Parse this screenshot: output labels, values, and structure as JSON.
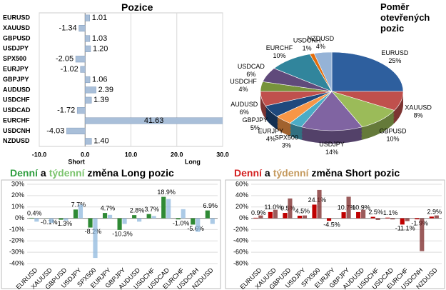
{
  "chart_data": [
    {
      "type": "bar",
      "orientation": "horizontal",
      "title": "Pozice",
      "categories": [
        "EURUSD",
        "XAUUSD",
        "GBPUSD",
        "USDJPY",
        "SPX500",
        "EURJPY",
        "GBPJPY",
        "AUDUSD",
        "USDCHF",
        "USDCAD",
        "EURCHF",
        "USDCNH",
        "NZDUSD"
      ],
      "values": [
        1.01,
        -1.34,
        1.03,
        1.2,
        -2.05,
        -1.02,
        1.06,
        2.39,
        1.39,
        -1.72,
        41.63,
        -4.03,
        1.4
      ],
      "value_labels": [
        "1.01",
        "-1.34",
        "1.03",
        "1.20",
        "-2.05",
        "-1.02",
        "1.06",
        "2.39",
        "1.39",
        "-1.72",
        "41.63",
        "-4.03",
        "1.40"
      ],
      "color": "#a9bfd9",
      "xlim": [
        -10,
        30
      ],
      "xticks": [
        {
          "value": -10,
          "label": "-10.0"
        },
        {
          "value": 0,
          "label": "0.0"
        },
        {
          "value": 10,
          "label": "10.0"
        },
        {
          "value": 20,
          "label": "20.0"
        },
        {
          "value": 30,
          "label": "30.0"
        }
      ],
      "annotations": [
        "Short",
        "Long"
      ],
      "grid": true
    },
    {
      "type": "pie",
      "title": "Poměr otevřených pozic",
      "categories": [
        "EURUSD",
        "XAUUSD",
        "GBPUSD",
        "USDJPY",
        "SPX500",
        "EURJPY",
        "GBPJPY",
        "AUDUSD",
        "USDCHF",
        "USDCAD",
        "EURCHF",
        "USDCNH",
        "NZDUSD"
      ],
      "values": [
        25,
        8,
        10,
        14,
        3,
        4,
        5,
        6,
        4,
        6,
        10,
        1,
        4
      ],
      "value_labels": [
        "25%",
        "8%",
        "10%",
        "14%",
        "3%",
        "4%",
        "5%",
        "6%",
        "4%",
        "6%",
        "10%",
        "1%",
        "4%"
      ],
      "colors": [
        "#2e5f9e",
        "#c0504d",
        "#9bbb59",
        "#8064a2",
        "#4bacc6",
        "#f79646",
        "#1f497d",
        "#c0504d",
        "#77933c",
        "#604a7b",
        "#31859c",
        "#e46c0a",
        "#95b3d7"
      ]
    },
    {
      "type": "bar",
      "title": [
        {
          "text": "Denní",
          "color": "#2e9e3e"
        },
        {
          "text": "a"
        },
        {
          "text": "týdenní",
          "color": "#7cc46e"
        },
        {
          "text": "změna Long pozic"
        }
      ],
      "categories": [
        "EURUSD",
        "XAUUSD",
        "GBPUSD",
        "USDJPY",
        "SPX500",
        "EURJPY",
        "GBPJPY",
        "AUDUSD",
        "USDCHF",
        "USDCAD",
        "EURCHF",
        "USDCNH",
        "NZDUSD"
      ],
      "series": [
        {
          "color": "#2f8a35",
          "values": [
            0.4,
            -0.1,
            -1.3,
            7.7,
            -8.2,
            4.7,
            -10.3,
            2.8,
            3.7,
            18.9,
            -1.0,
            -5.6,
            6.9
          ],
          "value_labels": [
            "0.4%",
            "-0.1%",
            "-1.3%",
            "7.7%",
            "-8.2%",
            "4.7%",
            "-10.3%",
            "2.8%",
            "3.7%",
            "18.9%",
            "-1.0%",
            "-5.6%",
            "6.9%"
          ]
        },
        {
          "color": "#8fb8de",
          "values": [
            -3,
            -4,
            -2,
            12,
            -35,
            3,
            -5,
            -3,
            2,
            17,
            8,
            -12,
            -5
          ]
        }
      ],
      "ylim": [
        -40,
        30
      ],
      "yticks": [
        {
          "value": -40,
          "label": "-40%"
        },
        {
          "value": -30,
          "label": "-30%"
        },
        {
          "value": -20,
          "label": "-20%"
        },
        {
          "value": -10,
          "label": "-10%"
        },
        {
          "value": 0,
          "label": "0%"
        },
        {
          "value": 10,
          "label": "10%"
        },
        {
          "value": 20,
          "label": "20%"
        },
        {
          "value": 30,
          "label": "30%"
        }
      ],
      "grid": true
    },
    {
      "type": "bar",
      "title": [
        {
          "text": "Denní",
          "color": "#d42020"
        },
        {
          "text": "a"
        },
        {
          "text": "týdenní",
          "color": "#c59a5e"
        },
        {
          "text": "změna Short pozic"
        }
      ],
      "categories": [
        "EURUSD",
        "XAUUSD",
        "GBPUSD",
        "USDJPY",
        "SPX500",
        "EURJPY",
        "GBPJPY",
        "AUDUSD",
        "USDCHF",
        "USDCAD",
        "EURCHF",
        "USDCNH",
        "NZDUSD"
      ],
      "series": [
        {
          "color": "#c00000",
          "values": [
            0.9,
            11.0,
            9.5,
            4.5,
            24.1,
            -4.5,
            10.7,
            10.9,
            2.5,
            1.1,
            -11.1,
            -1.9,
            2.9
          ],
          "value_labels": [
            "0.9%",
            "11.0%",
            "9.5%",
            "4.5%",
            "24.1%",
            "-4.5%",
            "10.7%",
            "10.9%",
            "2.5%",
            "1.1%",
            "-11.1%",
            "-1.9%",
            "2.9%"
          ]
        },
        {
          "color": "#7a2424",
          "values": [
            5,
            15,
            35,
            5,
            50,
            0,
            38,
            15,
            -3,
            -2,
            -5,
            -58,
            5
          ]
        }
      ],
      "ylim": [
        -80,
        60
      ],
      "yticks": [
        {
          "value": -80,
          "label": "-80%"
        },
        {
          "value": -60,
          "label": "-60%"
        },
        {
          "value": -40,
          "label": "-40%"
        },
        {
          "value": -20,
          "label": "-20%"
        },
        {
          "value": 0,
          "label": "0%"
        },
        {
          "value": 20,
          "label": "20%"
        },
        {
          "value": 40,
          "label": "40%"
        },
        {
          "value": 60,
          "label": "60%"
        }
      ],
      "grid": true
    }
  ]
}
